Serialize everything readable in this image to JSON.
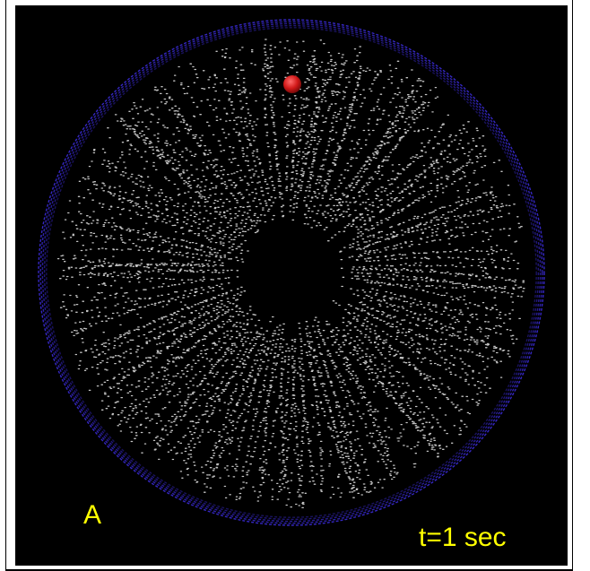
{
  "figure": {
    "panel_label": "A",
    "time_label": "t=1 sec",
    "colors": {
      "background": "#000000",
      "boundary_ring": "#3b2bd9",
      "particles": "#e6e6e6",
      "marker_ball": "#d01818",
      "label_text": "#ffff00"
    },
    "icons": [
      "boundary-ring",
      "particle-field",
      "red-sphere-marker"
    ]
  }
}
